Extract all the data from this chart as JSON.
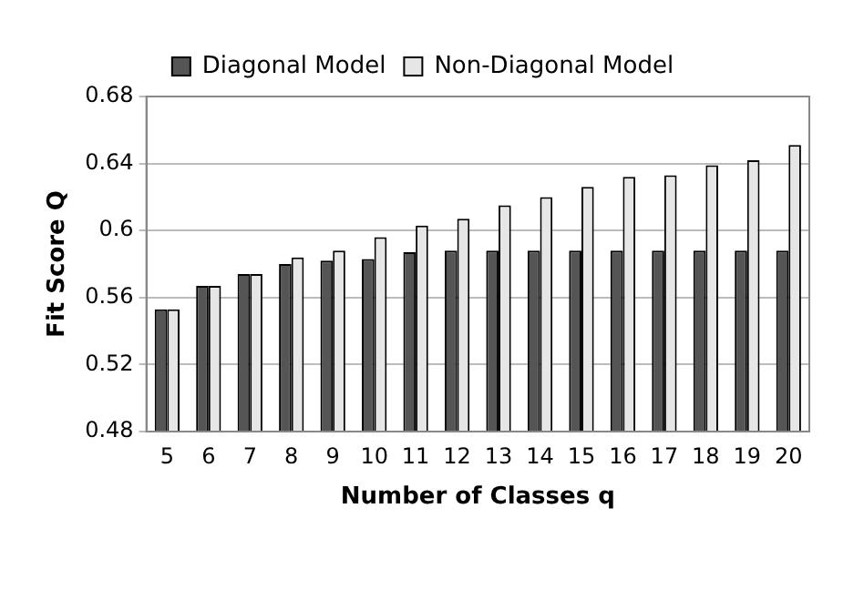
{
  "chart_data": {
    "type": "bar",
    "xlabel": "Number of Classes q",
    "ylabel": "Fit Score Q",
    "categories": [
      "5",
      "6",
      "7",
      "8",
      "9",
      "10",
      "11",
      "12",
      "13",
      "14",
      "15",
      "16",
      "17",
      "18",
      "19",
      "20"
    ],
    "series": [
      {
        "name": "Diagonal Model",
        "color": "#555555",
        "values": [
          0.553,
          0.567,
          0.574,
          0.58,
          0.582,
          0.583,
          0.587,
          0.588,
          0.588,
          0.588,
          0.588,
          0.588,
          0.588,
          0.588,
          0.588,
          0.588
        ]
      },
      {
        "name": "Non-Diagonal Model",
        "color": "#e6e6e6",
        "values": [
          0.553,
          0.567,
          0.574,
          0.584,
          0.588,
          0.596,
          0.603,
          0.607,
          0.615,
          0.62,
          0.626,
          0.632,
          0.633,
          0.639,
          0.642,
          0.651
        ]
      }
    ],
    "ylim": [
      0.48,
      0.68
    ],
    "yticks": [
      0.48,
      0.52,
      0.56,
      0.6,
      0.64,
      0.68
    ],
    "grid": "y",
    "legend": "top"
  }
}
